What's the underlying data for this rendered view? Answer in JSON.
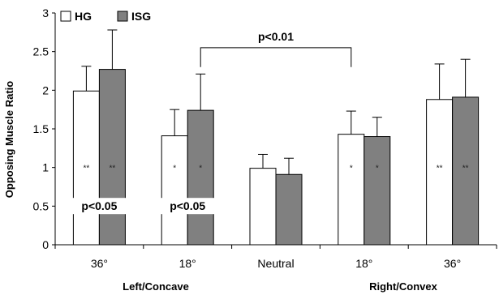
{
  "chart_data": {
    "type": "bar",
    "ylabel": "Opposing Muscle Ratio",
    "xlabel": "",
    "ylim": [
      0,
      3
    ],
    "yticks": [
      "0",
      "0.5",
      "1",
      "1.5",
      "2",
      "2.5",
      "3"
    ],
    "categories": [
      "36°",
      "18°",
      "Neutral",
      "18°",
      "36°"
    ],
    "groups": [
      "Left/Concave",
      "Right/Convex"
    ],
    "legend_position": "top-left",
    "grid": false,
    "series": [
      {
        "name": "HG",
        "color": "#ffffff",
        "values": [
          1.99,
          1.41,
          0.99,
          1.43,
          1.88
        ],
        "errors": [
          0.32,
          0.34,
          0.18,
          0.3,
          0.46
        ],
        "annotations": [
          "**",
          "*",
          "",
          "*",
          "**"
        ]
      },
      {
        "name": "ISG",
        "color": "#808080",
        "values": [
          2.27,
          1.74,
          0.91,
          1.4,
          1.91
        ],
        "errors": [
          0.51,
          0.47,
          0.21,
          0.25,
          0.49
        ],
        "annotations": [
          "**",
          "*",
          "",
          "*",
          "**"
        ]
      }
    ],
    "significance": [
      {
        "text": "p<0.05",
        "category_index": 0
      },
      {
        "text": "p<0.05",
        "category_index": 1
      }
    ],
    "bracket": {
      "text": "p<0.01",
      "from_category": 1,
      "to_category": 3,
      "value": 2.55
    }
  }
}
